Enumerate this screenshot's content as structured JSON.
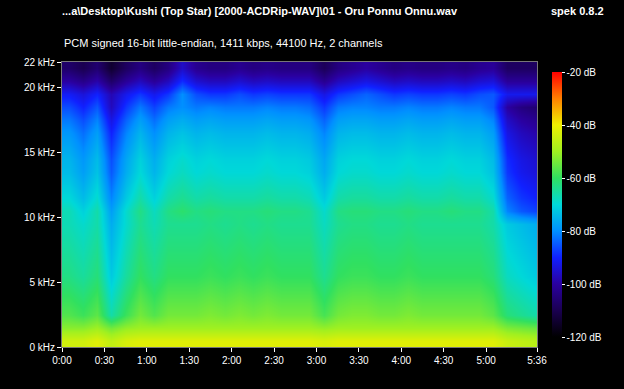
{
  "chart_data": {
    "type": "heatmap",
    "title": "...a\\Desktop\\Kushi (Top Star) [2000-ACDRip-WAV]\\01 - Oru Ponnu Onnu.wav",
    "subtitle": "PCM signed 16-bit little-endian, 1411 kbps, 44100 Hz, 2 channels",
    "annotations": [
      "spek 0.8.2"
    ],
    "x": [
      5,
      15,
      25,
      35,
      45,
      55,
      65,
      75,
      85,
      95,
      105,
      115,
      125,
      135,
      145,
      155,
      165,
      175,
      185,
      195,
      205,
      215,
      225,
      235,
      245,
      255,
      265,
      275,
      285,
      295,
      305,
      315,
      325,
      335
    ],
    "y": [
      0.5,
      1.5,
      2.5,
      3.5,
      4.5,
      5.5,
      6.5,
      7.5,
      8.5,
      9.5,
      10.5,
      11.5,
      12.5,
      13.5,
      14.5,
      15.5,
      16.5,
      17.5,
      18.5,
      19.5,
      20.5,
      21.5
    ],
    "z": [
      [
        -44,
        -44,
        -42,
        -46,
        -43,
        -42,
        -42,
        -42,
        -42,
        -42,
        -42,
        -42,
        -42,
        -42,
        -42,
        -42,
        -42,
        -42,
        -43,
        -42,
        -42,
        -42,
        -42,
        -42,
        -42,
        -42,
        -42,
        -42,
        -42,
        -42,
        -42,
        -45,
        -46,
        -47
      ],
      [
        -52,
        -52,
        -50,
        -54,
        -51,
        -50,
        -50,
        -50,
        -50,
        -50,
        -50,
        -50,
        -50,
        -50,
        -50,
        -50,
        -50,
        -50,
        -51,
        -50,
        -50,
        -50,
        -50,
        -50,
        -50,
        -50,
        -50,
        -50,
        -50,
        -50,
        -50,
        -53,
        -54,
        -55
      ],
      [
        -57,
        -59,
        -56,
        -66,
        -59,
        -54,
        -57,
        -54,
        -54,
        -54,
        -53,
        -54,
        -53,
        -54,
        -53,
        -54,
        -54,
        -54,
        -58,
        -54,
        -53,
        -53,
        -54,
        -54,
        -53,
        -54,
        -54,
        -54,
        -54,
        -54,
        -56,
        -62,
        -64,
        -66
      ],
      [
        -59,
        -61,
        -58,
        -68,
        -61,
        -56,
        -59,
        -56,
        -56,
        -56,
        -55,
        -56,
        -55,
        -56,
        -55,
        -56,
        -56,
        -56,
        -60,
        -56,
        -55,
        -55,
        -56,
        -56,
        -55,
        -56,
        -56,
        -56,
        -56,
        -56,
        -58,
        -64,
        -66,
        -68
      ],
      [
        -61,
        -63,
        -60,
        -70,
        -63,
        -58,
        -61,
        -58,
        -58,
        -58,
        -57,
        -58,
        -57,
        -58,
        -57,
        -58,
        -58,
        -58,
        -62,
        -58,
        -57,
        -57,
        -58,
        -58,
        -57,
        -58,
        -58,
        -58,
        -58,
        -58,
        -60,
        -66,
        -68,
        -70
      ],
      [
        -63,
        -65,
        -62,
        -72,
        -65,
        -60,
        -63,
        -60,
        -60,
        -60,
        -59,
        -60,
        -59,
        -60,
        -59,
        -60,
        -60,
        -60,
        -64,
        -60,
        -59,
        -59,
        -60,
        -60,
        -59,
        -60,
        -60,
        -60,
        -60,
        -60,
        -62,
        -68,
        -70,
        -72
      ],
      [
        -64,
        -66,
        -63,
        -73,
        -66,
        -61,
        -64,
        -61,
        -61,
        -61,
        -60,
        -61,
        -60,
        -61,
        -60,
        -61,
        -61,
        -61,
        -65,
        -61,
        -60,
        -60,
        -61,
        -61,
        -60,
        -61,
        -61,
        -61,
        -61,
        -61,
        -63,
        -69,
        -71,
        -73
      ],
      [
        -65,
        -67,
        -64,
        -74,
        -67,
        -62,
        -65,
        -62,
        -62,
        -62,
        -61,
        -62,
        -61,
        -62,
        -61,
        -62,
        -62,
        -62,
        -66,
        -62,
        -61,
        -61,
        -62,
        -62,
        -61,
        -62,
        -62,
        -62,
        -62,
        -62,
        -64,
        -70,
        -72,
        -74
      ],
      [
        -66,
        -68,
        -65,
        -75,
        -68,
        -63,
        -66,
        -63,
        -63,
        -63,
        -62,
        -63,
        -62,
        -63,
        -62,
        -63,
        -63,
        -63,
        -67,
        -63,
        -62,
        -62,
        -63,
        -63,
        -62,
        -63,
        -63,
        -63,
        -63,
        -63,
        -65,
        -71,
        -73,
        -75
      ],
      [
        -67,
        -69,
        -66,
        -76,
        -69,
        -64,
        -67,
        -64,
        -64,
        -64,
        -63,
        -64,
        -63,
        -64,
        -63,
        -64,
        -64,
        -64,
        -68,
        -64,
        -63,
        -63,
        -64,
        -64,
        -63,
        -64,
        -64,
        -64,
        -64,
        -64,
        -66,
        -72,
        -74,
        -76
      ],
      [
        -67,
        -71,
        -66,
        -78,
        -69,
        -63,
        -68,
        -63,
        -61,
        -63,
        -62,
        -63,
        -63,
        -63,
        -62,
        -63,
        -63,
        -64,
        -69,
        -63,
        -62,
        -62,
        -63,
        -63,
        -62,
        -63,
        -63,
        -62,
        -63,
        -63,
        -66,
        -81,
        -85,
        -87
      ],
      [
        -70,
        -74,
        -69,
        -81,
        -72,
        -66,
        -71,
        -66,
        -64,
        -66,
        -65,
        -66,
        -66,
        -66,
        -65,
        -66,
        -66,
        -67,
        -72,
        -66,
        -65,
        -65,
        -66,
        -66,
        -65,
        -66,
        -66,
        -65,
        -66,
        -66,
        -69,
        -84,
        -88,
        -90
      ],
      [
        -72,
        -76,
        -71,
        -83,
        -74,
        -68,
        -73,
        -68,
        -66,
        -68,
        -67,
        -68,
        -68,
        -68,
        -67,
        -68,
        -68,
        -69,
        -74,
        -68,
        -67,
        -67,
        -68,
        -68,
        -67,
        -68,
        -68,
        -67,
        -68,
        -68,
        -71,
        -86,
        -90,
        -92
      ],
      [
        -74,
        -78,
        -73,
        -85,
        -76,
        -70,
        -75,
        -70,
        -68,
        -70,
        -69,
        -70,
        -70,
        -70,
        -69,
        -70,
        -70,
        -71,
        -76,
        -70,
        -69,
        -69,
        -70,
        -70,
        -69,
        -70,
        -70,
        -69,
        -70,
        -70,
        -73,
        -88,
        -92,
        -94
      ],
      [
        -75,
        -79,
        -74,
        -86,
        -77,
        -71,
        -76,
        -71,
        -69,
        -71,
        -70,
        -71,
        -71,
        -71,
        -70,
        -71,
        -71,
        -72,
        -77,
        -71,
        -70,
        -70,
        -71,
        -71,
        -70,
        -71,
        -71,
        -70,
        -71,
        -71,
        -74,
        -89,
        -93,
        -95
      ],
      [
        -77,
        -81,
        -76,
        -88,
        -79,
        -73,
        -78,
        -73,
        -71,
        -73,
        -72,
        -73,
        -73,
        -73,
        -72,
        -73,
        -73,
        -74,
        -79,
        -73,
        -72,
        -72,
        -73,
        -73,
        -72,
        -73,
        -73,
        -72,
        -73,
        -73,
        -76,
        -91,
        -95,
        -97
      ],
      [
        -79,
        -83,
        -78,
        -90,
        -81,
        -75,
        -80,
        -75,
        -73,
        -75,
        -74,
        -75,
        -75,
        -75,
        -74,
        -75,
        -75,
        -76,
        -81,
        -75,
        -74,
        -74,
        -75,
        -75,
        -74,
        -75,
        -75,
        -74,
        -75,
        -75,
        -78,
        -93,
        -97,
        -99
      ],
      [
        -82,
        -86,
        -81,
        -93,
        -84,
        -78,
        -83,
        -78,
        -76,
        -78,
        -77,
        -78,
        -78,
        -78,
        -77,
        -78,
        -78,
        -79,
        -84,
        -78,
        -77,
        -77,
        -78,
        -78,
        -77,
        -78,
        -78,
        -77,
        -78,
        -78,
        -81,
        -96,
        -100,
        -102
      ],
      [
        -86,
        -90,
        -85,
        -97,
        -88,
        -82,
        -87,
        -82,
        -80,
        -82,
        -81,
        -82,
        -82,
        -82,
        -81,
        -82,
        -82,
        -83,
        -88,
        -82,
        -81,
        -81,
        -82,
        -82,
        -81,
        -82,
        -82,
        -81,
        -82,
        -82,
        -85,
        -100,
        -104,
        -106
      ],
      [
        -91,
        -94,
        -90,
        -98,
        -92,
        -88,
        -92,
        -88,
        -80,
        -86,
        -88,
        -88,
        -86,
        -88,
        -87,
        -88,
        -88,
        -88,
        -93,
        -88,
        -86,
        -84,
        -86,
        -88,
        -87,
        -88,
        -88,
        -87,
        -88,
        -86,
        -85,
        -92,
        -92,
        -92
      ],
      [
        -100,
        -103,
        -99,
        -107,
        -101,
        -97,
        -101,
        -97,
        -89,
        -95,
        -97,
        -97,
        -95,
        -97,
        -96,
        -97,
        -97,
        -97,
        -102,
        -97,
        -95,
        -93,
        -95,
        -97,
        -96,
        -97,
        -97,
        -96,
        -97,
        -95,
        -94,
        -101,
        -101,
        -101
      ],
      [
        -107,
        -110,
        -106,
        -114,
        -108,
        -104,
        -108,
        -104,
        -96,
        -102,
        -104,
        -104,
        -102,
        -104,
        -103,
        -104,
        -104,
        -104,
        -109,
        -104,
        -102,
        -100,
        -102,
        -104,
        -103,
        -104,
        -104,
        -103,
        -104,
        -102,
        -101,
        -108,
        -108,
        -108
      ]
    ],
    "xlim": [
      0,
      336
    ],
    "xticks": [
      {
        "value": 0,
        "label": "0:00"
      },
      {
        "value": 30,
        "label": "0:30"
      },
      {
        "value": 60,
        "label": "1:00"
      },
      {
        "value": 90,
        "label": "1:30"
      },
      {
        "value": 120,
        "label": "2:00"
      },
      {
        "value": 150,
        "label": "2:30"
      },
      {
        "value": 180,
        "label": "3:00"
      },
      {
        "value": 210,
        "label": "3:30"
      },
      {
        "value": 240,
        "label": "4:00"
      },
      {
        "value": 270,
        "label": "4:30"
      },
      {
        "value": 300,
        "label": "5:00"
      },
      {
        "value": 336,
        "label": "5:36"
      }
    ],
    "ylim": [
      0,
      22
    ],
    "yticks": [
      {
        "value": 0,
        "label": "0 kHz"
      },
      {
        "value": 5,
        "label": "5 kHz"
      },
      {
        "value": 10,
        "label": "10 kHz"
      },
      {
        "value": 15,
        "label": "15 kHz"
      },
      {
        "value": 20,
        "label": "20 kHz"
      },
      {
        "value": 22,
        "label": "22 kHz"
      }
    ],
    "colorbar": {
      "range": [
        -120,
        -20
      ],
      "ticks": [
        {
          "value": -20,
          "label": "-20 dB"
        },
        {
          "value": -40,
          "label": "-40 dB"
        },
        {
          "value": -60,
          "label": "-60 dB"
        },
        {
          "value": -80,
          "label": "-80 dB"
        },
        {
          "value": -100,
          "label": "-100 dB"
        },
        {
          "value": -120,
          "label": "-120 dB"
        }
      ]
    }
  }
}
